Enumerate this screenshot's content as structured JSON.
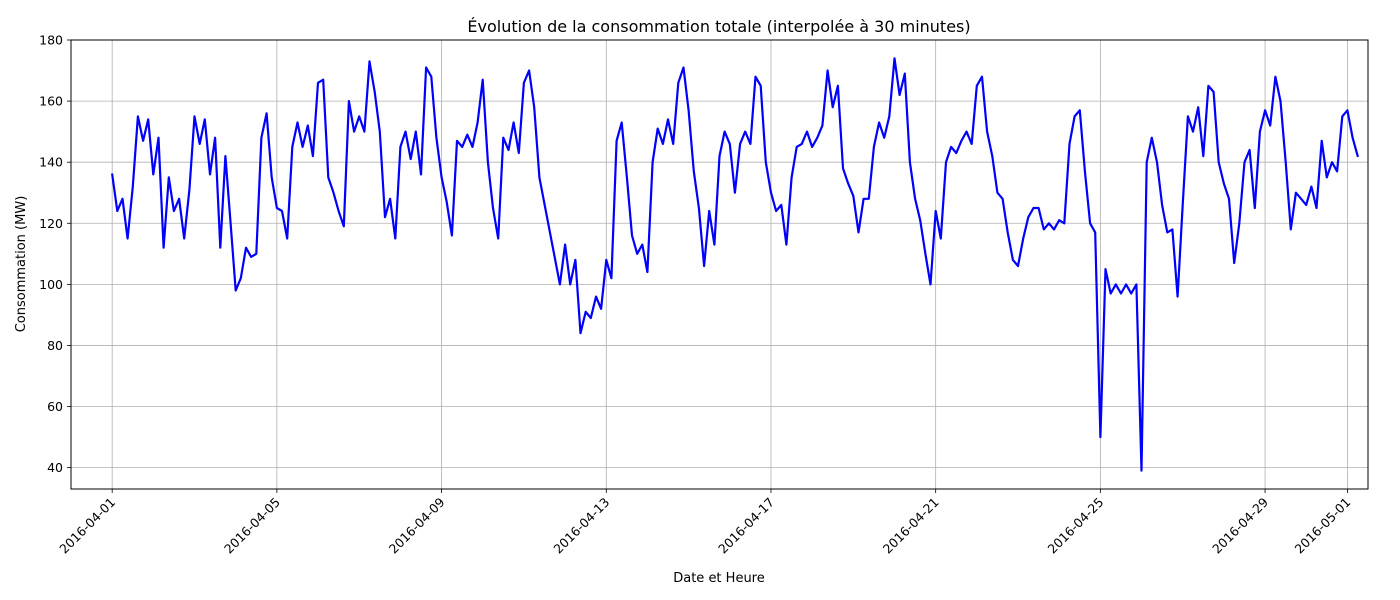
{
  "chart_data": {
    "type": "line",
    "title": "Évolution de la consommation totale (interpolée à 30 minutes)",
    "xlabel": "Date et Heure",
    "ylabel": "Consommation (MW)",
    "xlim": [
      "2016-03-31T00:00",
      "2016-05-01T12:00"
    ],
    "ylim": [
      33,
      180
    ],
    "x_ticks": [
      "2016-04-01",
      "2016-04-05",
      "2016-04-09",
      "2016-04-13",
      "2016-04-17",
      "2016-04-21",
      "2016-04-25",
      "2016-04-29",
      "2016-05-01"
    ],
    "y_ticks": [
      40,
      60,
      80,
      100,
      120,
      140,
      160,
      180
    ],
    "grid": true,
    "series": [
      {
        "name": "",
        "color": "#0000ff",
        "points": [
          [
            "2016-04-01T00:00",
            136
          ],
          [
            "2016-04-01T03:00",
            124
          ],
          [
            "2016-04-01T06:00",
            128
          ],
          [
            "2016-04-01T09:00",
            115
          ],
          [
            "2016-04-01T12:00",
            132
          ],
          [
            "2016-04-01T15:00",
            155
          ],
          [
            "2016-04-01T18:00",
            147
          ],
          [
            "2016-04-01T21:00",
            154
          ],
          [
            "2016-04-02T00:00",
            136
          ],
          [
            "2016-04-02T03:00",
            148
          ],
          [
            "2016-04-02T06:00",
            112
          ],
          [
            "2016-04-02T09:00",
            135
          ],
          [
            "2016-04-02T12:00",
            124
          ],
          [
            "2016-04-02T15:00",
            128
          ],
          [
            "2016-04-02T18:00",
            115
          ],
          [
            "2016-04-02T21:00",
            131
          ],
          [
            "2016-04-03T00:00",
            155
          ],
          [
            "2016-04-03T03:00",
            146
          ],
          [
            "2016-04-03T06:00",
            154
          ],
          [
            "2016-04-03T09:00",
            136
          ],
          [
            "2016-04-03T12:00",
            148
          ],
          [
            "2016-04-03T15:00",
            112
          ],
          [
            "2016-04-03T18:00",
            142
          ],
          [
            "2016-04-03T21:00",
            120
          ],
          [
            "2016-04-04T00:00",
            98
          ],
          [
            "2016-04-04T03:00",
            102
          ],
          [
            "2016-04-04T06:00",
            112
          ],
          [
            "2016-04-04T09:00",
            109
          ],
          [
            "2016-04-04T12:00",
            110
          ],
          [
            "2016-04-04T15:00",
            148
          ],
          [
            "2016-04-04T18:00",
            156
          ],
          [
            "2016-04-04T21:00",
            135
          ],
          [
            "2016-04-05T00:00",
            125
          ],
          [
            "2016-04-05T03:00",
            124
          ],
          [
            "2016-04-05T06:00",
            115
          ],
          [
            "2016-04-05T09:00",
            145
          ],
          [
            "2016-04-05T12:00",
            153
          ],
          [
            "2016-04-05T15:00",
            145
          ],
          [
            "2016-04-05T18:00",
            152
          ],
          [
            "2016-04-05T21:00",
            142
          ],
          [
            "2016-04-06T00:00",
            166
          ],
          [
            "2016-04-06T03:00",
            167
          ],
          [
            "2016-04-06T06:00",
            135
          ],
          [
            "2016-04-06T09:00",
            130
          ],
          [
            "2016-04-06T12:00",
            124
          ],
          [
            "2016-04-06T15:00",
            119
          ],
          [
            "2016-04-06T18:00",
            160
          ],
          [
            "2016-04-06T21:00",
            150
          ],
          [
            "2016-04-07T00:00",
            155
          ],
          [
            "2016-04-07T03:00",
            150
          ],
          [
            "2016-04-07T06:00",
            173
          ],
          [
            "2016-04-07T09:00",
            163
          ],
          [
            "2016-04-07T12:00",
            150
          ],
          [
            "2016-04-07T15:00",
            122
          ],
          [
            "2016-04-07T18:00",
            128
          ],
          [
            "2016-04-07T21:00",
            115
          ],
          [
            "2016-04-08T00:00",
            145
          ],
          [
            "2016-04-08T03:00",
            150
          ],
          [
            "2016-04-08T06:00",
            141
          ],
          [
            "2016-04-08T09:00",
            150
          ],
          [
            "2016-04-08T12:00",
            136
          ],
          [
            "2016-04-08T15:00",
            171
          ],
          [
            "2016-04-08T18:00",
            168
          ],
          [
            "2016-04-08T21:00",
            148
          ],
          [
            "2016-04-09T00:00",
            135
          ],
          [
            "2016-04-09T03:00",
            127
          ],
          [
            "2016-04-09T06:00",
            116
          ],
          [
            "2016-04-09T09:00",
            147
          ],
          [
            "2016-04-09T12:00",
            145
          ],
          [
            "2016-04-09T15:00",
            149
          ],
          [
            "2016-04-09T18:00",
            145
          ],
          [
            "2016-04-09T21:00",
            153
          ],
          [
            "2016-04-10T00:00",
            167
          ],
          [
            "2016-04-10T03:00",
            140
          ],
          [
            "2016-04-10T06:00",
            125
          ],
          [
            "2016-04-10T09:00",
            115
          ],
          [
            "2016-04-10T12:00",
            148
          ],
          [
            "2016-04-10T15:00",
            144
          ],
          [
            "2016-04-10T18:00",
            153
          ],
          [
            "2016-04-10T21:00",
            143
          ],
          [
            "2016-04-11T00:00",
            166
          ],
          [
            "2016-04-11T03:00",
            170
          ],
          [
            "2016-04-11T06:00",
            158
          ],
          [
            "2016-04-11T09:00",
            135
          ],
          [
            "2016-04-11T21:00",
            100
          ],
          [
            "2016-04-12T00:00",
            113
          ],
          [
            "2016-04-12T03:00",
            100
          ],
          [
            "2016-04-12T06:00",
            108
          ],
          [
            "2016-04-12T09:00",
            84
          ],
          [
            "2016-04-12T12:00",
            91
          ],
          [
            "2016-04-12T15:00",
            89
          ],
          [
            "2016-04-12T18:00",
            96
          ],
          [
            "2016-04-12T21:00",
            92
          ],
          [
            "2016-04-13T00:00",
            108
          ],
          [
            "2016-04-13T03:00",
            102
          ],
          [
            "2016-04-13T06:00",
            147
          ],
          [
            "2016-04-13T09:00",
            153
          ],
          [
            "2016-04-13T12:00",
            135
          ],
          [
            "2016-04-13T15:00",
            116
          ],
          [
            "2016-04-13T18:00",
            110
          ],
          [
            "2016-04-13T21:00",
            113
          ],
          [
            "2016-04-14T00:00",
            104
          ],
          [
            "2016-04-14T03:00",
            140
          ],
          [
            "2016-04-14T06:00",
            151
          ],
          [
            "2016-04-14T09:00",
            146
          ],
          [
            "2016-04-14T12:00",
            154
          ],
          [
            "2016-04-14T15:00",
            146
          ],
          [
            "2016-04-14T18:00",
            166
          ],
          [
            "2016-04-14T21:00",
            171
          ],
          [
            "2016-04-15T00:00",
            157
          ],
          [
            "2016-04-15T03:00",
            137
          ],
          [
            "2016-04-15T06:00",
            125
          ],
          [
            "2016-04-15T09:00",
            106
          ],
          [
            "2016-04-15T12:00",
            124
          ],
          [
            "2016-04-15T15:00",
            113
          ],
          [
            "2016-04-15T18:00",
            142
          ],
          [
            "2016-04-15T21:00",
            150
          ],
          [
            "2016-04-16T00:00",
            146
          ],
          [
            "2016-04-16T03:00",
            130
          ],
          [
            "2016-04-16T06:00",
            146
          ],
          [
            "2016-04-16T09:00",
            150
          ],
          [
            "2016-04-16T12:00",
            146
          ],
          [
            "2016-04-16T15:00",
            168
          ],
          [
            "2016-04-16T18:00",
            165
          ],
          [
            "2016-04-16T21:00",
            140
          ],
          [
            "2016-04-17T00:00",
            130
          ],
          [
            "2016-04-17T03:00",
            124
          ],
          [
            "2016-04-17T06:00",
            126
          ],
          [
            "2016-04-17T09:00",
            113
          ],
          [
            "2016-04-17T12:00",
            135
          ],
          [
            "2016-04-17T15:00",
            145
          ],
          [
            "2016-04-17T18:00",
            146
          ],
          [
            "2016-04-17T21:00",
            150
          ],
          [
            "2016-04-18T00:00",
            145
          ],
          [
            "2016-04-18T03:00",
            148
          ],
          [
            "2016-04-18T06:00",
            152
          ],
          [
            "2016-04-18T09:00",
            170
          ],
          [
            "2016-04-18T12:00",
            158
          ],
          [
            "2016-04-18T15:00",
            165
          ],
          [
            "2016-04-18T18:00",
            138
          ],
          [
            "2016-04-18T21:00",
            133
          ],
          [
            "2016-04-19T00:00",
            129
          ],
          [
            "2016-04-19T03:00",
            117
          ],
          [
            "2016-04-19T06:00",
            128
          ],
          [
            "2016-04-19T09:00",
            128
          ],
          [
            "2016-04-19T12:00",
            145
          ],
          [
            "2016-04-19T15:00",
            153
          ],
          [
            "2016-04-19T18:00",
            148
          ],
          [
            "2016-04-19T21:00",
            155
          ],
          [
            "2016-04-20T00:00",
            174
          ],
          [
            "2016-04-20T03:00",
            162
          ],
          [
            "2016-04-20T06:00",
            169
          ],
          [
            "2016-04-20T09:00",
            140
          ],
          [
            "2016-04-20T12:00",
            128
          ],
          [
            "2016-04-20T15:00",
            121
          ],
          [
            "2016-04-20T18:00",
            110
          ],
          [
            "2016-04-20T21:00",
            100
          ],
          [
            "2016-04-21T00:00",
            124
          ],
          [
            "2016-04-21T03:00",
            115
          ],
          [
            "2016-04-21T06:00",
            140
          ],
          [
            "2016-04-21T09:00",
            145
          ],
          [
            "2016-04-21T12:00",
            143
          ],
          [
            "2016-04-21T15:00",
            147
          ],
          [
            "2016-04-21T18:00",
            150
          ],
          [
            "2016-04-21T21:00",
            146
          ],
          [
            "2016-04-22T00:00",
            165
          ],
          [
            "2016-04-22T03:00",
            168
          ],
          [
            "2016-04-22T06:00",
            150
          ],
          [
            "2016-04-22T09:00",
            142
          ],
          [
            "2016-04-22T12:00",
            130
          ],
          [
            "2016-04-22T15:00",
            128
          ],
          [
            "2016-04-22T18:00",
            117
          ],
          [
            "2016-04-22T21:00",
            108
          ],
          [
            "2016-04-23T00:00",
            106
          ],
          [
            "2016-04-23T03:00",
            115
          ],
          [
            "2016-04-23T06:00",
            122
          ],
          [
            "2016-04-23T09:00",
            125
          ],
          [
            "2016-04-23T12:00",
            125
          ],
          [
            "2016-04-23T15:00",
            118
          ],
          [
            "2016-04-23T18:00",
            120
          ],
          [
            "2016-04-23T21:00",
            118
          ],
          [
            "2016-04-24T00:00",
            121
          ],
          [
            "2016-04-24T03:00",
            120
          ],
          [
            "2016-04-24T06:00",
            146
          ],
          [
            "2016-04-24T09:00",
            155
          ],
          [
            "2016-04-24T12:00",
            157
          ],
          [
            "2016-04-24T15:00",
            137
          ],
          [
            "2016-04-24T18:00",
            120
          ],
          [
            "2016-04-24T21:00",
            117
          ],
          [
            "2016-04-25T00:00",
            50
          ],
          [
            "2016-04-25T03:00",
            105
          ],
          [
            "2016-04-25T06:00",
            97
          ],
          [
            "2016-04-25T09:00",
            100
          ],
          [
            "2016-04-25T12:00",
            97
          ],
          [
            "2016-04-25T15:00",
            100
          ],
          [
            "2016-04-25T18:00",
            97
          ],
          [
            "2016-04-25T21:00",
            100
          ],
          [
            "2016-04-26T00:00",
            39
          ],
          [
            "2016-04-26T03:00",
            140
          ],
          [
            "2016-04-26T06:00",
            148
          ],
          [
            "2016-04-26T09:00",
            140
          ],
          [
            "2016-04-26T12:00",
            126
          ],
          [
            "2016-04-26T15:00",
            117
          ],
          [
            "2016-04-26T18:00",
            118
          ],
          [
            "2016-04-26T21:00",
            96
          ],
          [
            "2016-04-27T00:00",
            126
          ],
          [
            "2016-04-27T03:00",
            155
          ],
          [
            "2016-04-27T06:00",
            150
          ],
          [
            "2016-04-27T09:00",
            158
          ],
          [
            "2016-04-27T12:00",
            142
          ],
          [
            "2016-04-27T15:00",
            165
          ],
          [
            "2016-04-27T18:00",
            163
          ],
          [
            "2016-04-27T21:00",
            140
          ],
          [
            "2016-04-28T00:00",
            133
          ],
          [
            "2016-04-28T03:00",
            128
          ],
          [
            "2016-04-28T06:00",
            107
          ],
          [
            "2016-04-28T09:00",
            120
          ],
          [
            "2016-04-28T12:00",
            140
          ],
          [
            "2016-04-28T15:00",
            144
          ],
          [
            "2016-04-28T18:00",
            125
          ],
          [
            "2016-04-28T21:00",
            150
          ],
          [
            "2016-04-29T00:00",
            157
          ],
          [
            "2016-04-29T03:00",
            152
          ],
          [
            "2016-04-29T06:00",
            168
          ],
          [
            "2016-04-29T09:00",
            160
          ],
          [
            "2016-04-29T12:00",
            140
          ],
          [
            "2016-04-29T15:00",
            118
          ],
          [
            "2016-04-29T18:00",
            130
          ],
          [
            "2016-04-29T21:00",
            128
          ],
          [
            "2016-04-30T00:00",
            126
          ],
          [
            "2016-04-30T03:00",
            132
          ],
          [
            "2016-04-30T06:00",
            125
          ],
          [
            "2016-04-30T09:00",
            147
          ],
          [
            "2016-04-30T12:00",
            135
          ],
          [
            "2016-04-30T15:00",
            140
          ],
          [
            "2016-04-30T18:00",
            137
          ],
          [
            "2016-04-30T21:00",
            155
          ],
          [
            "2016-05-01T00:00",
            157
          ],
          [
            "2016-05-01T03:00",
            148
          ],
          [
            "2016-05-01T06:00",
            142
          ]
        ]
      }
    ]
  }
}
